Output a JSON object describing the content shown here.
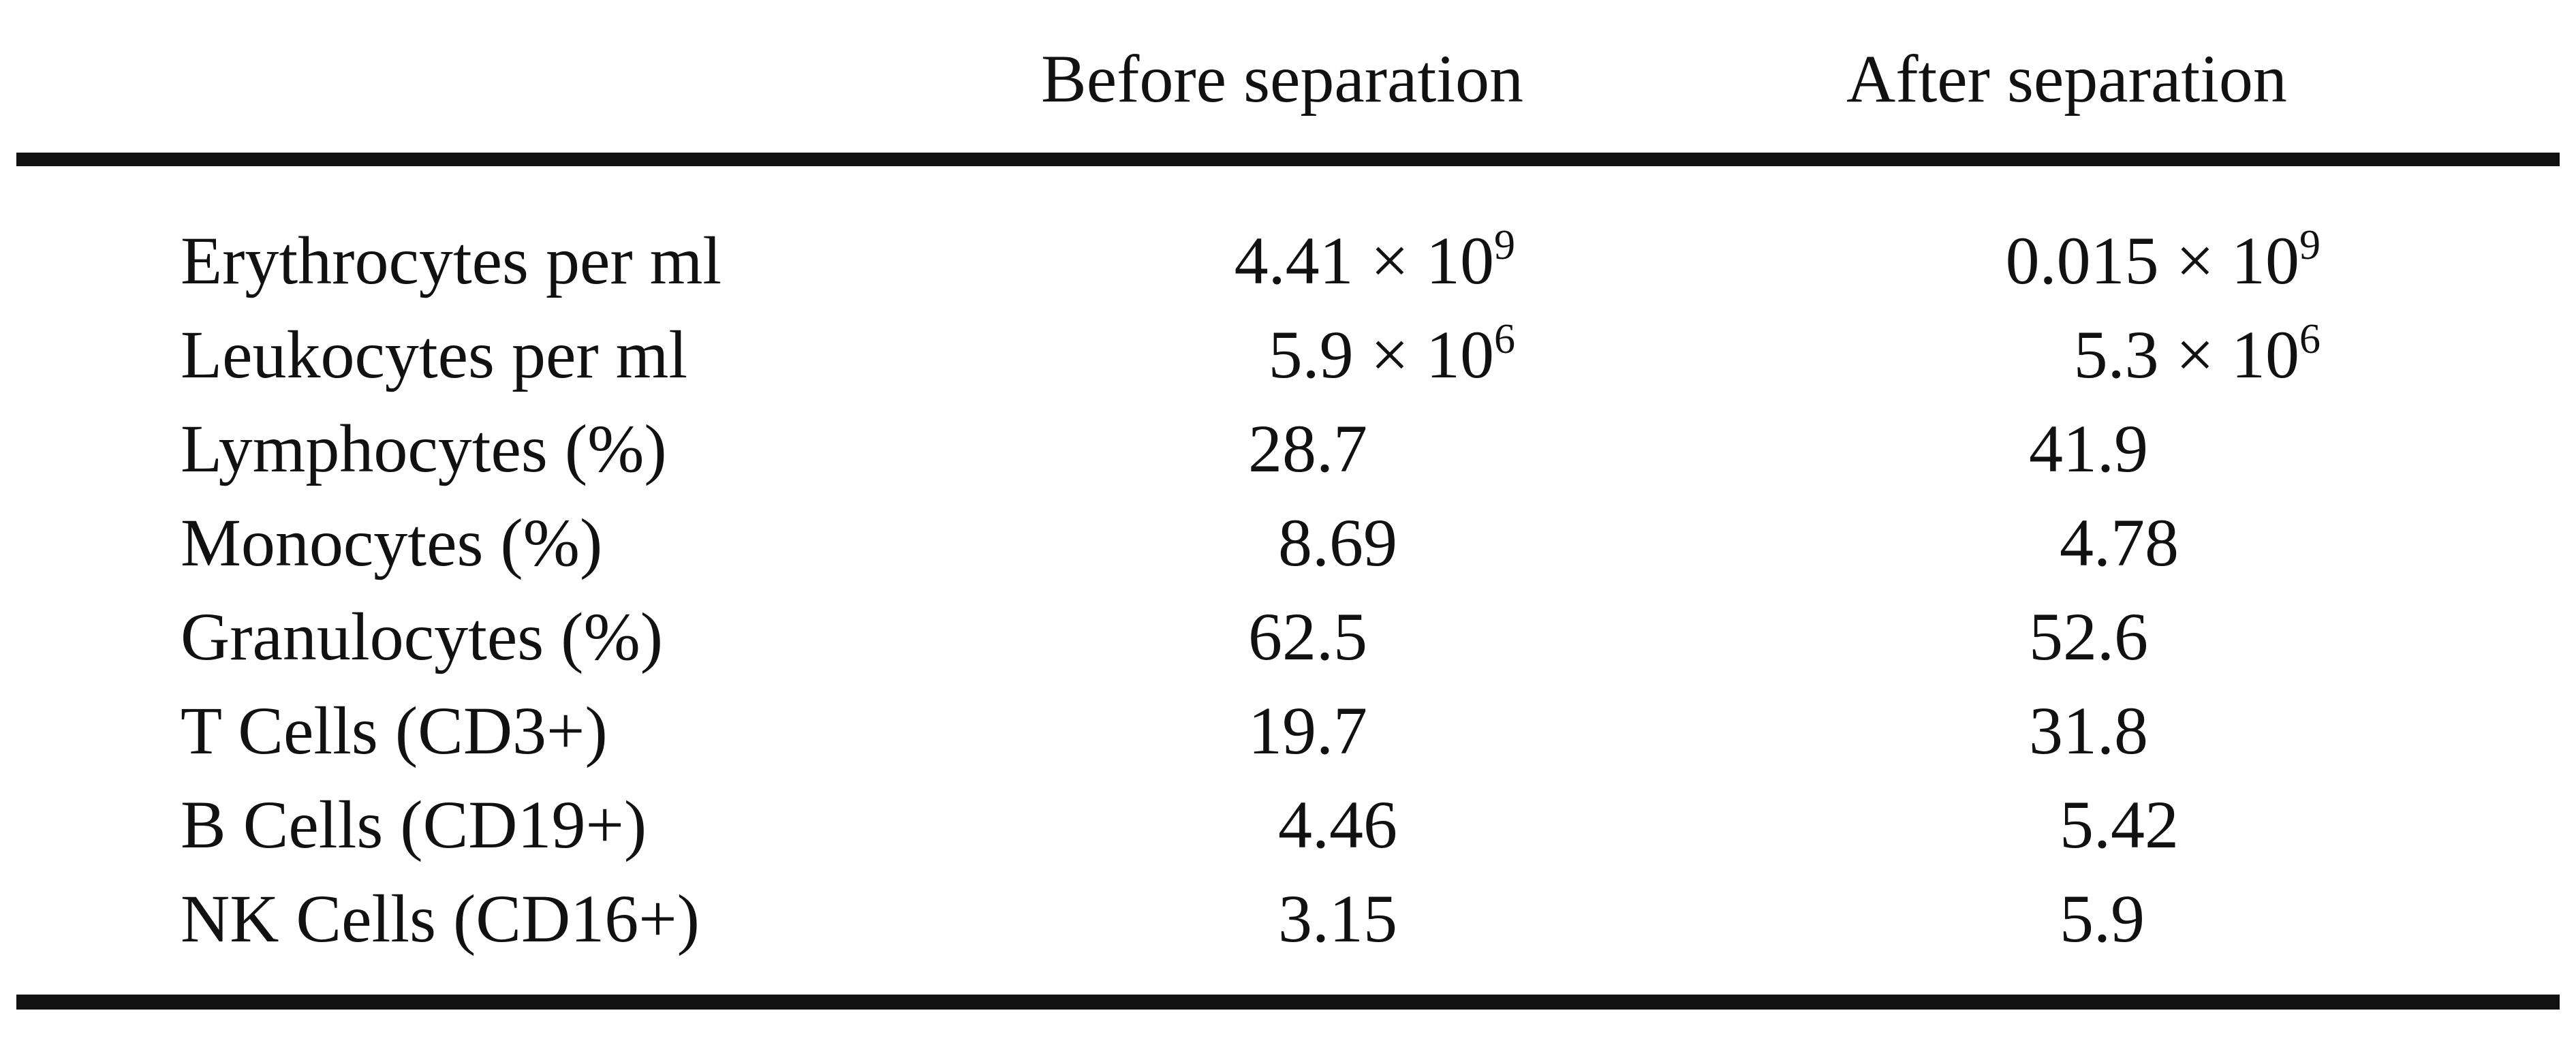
{
  "table": {
    "headers": {
      "col0": "",
      "before": "Before separation",
      "after": "After separation"
    },
    "rows": [
      {
        "label": "Erythrocytes per ml",
        "before_base": "4.41 × 10",
        "before_exp": "9",
        "after_base": "0.015 × 10",
        "after_exp": "9"
      },
      {
        "label": "Leukocytes per ml",
        "before_base": "5.9 × 10",
        "before_exp": "6",
        "after_base": "5.3 × 10",
        "after_exp": "6"
      },
      {
        "label": "Lymphocytes (%)",
        "before_base": "28.7",
        "before_exp": "",
        "after_base": "41.9",
        "after_exp": ""
      },
      {
        "label": "Monocytes (%)",
        "before_base": "8.69",
        "before_exp": "",
        "after_base": "4.78",
        "after_exp": ""
      },
      {
        "label": "Granulocytes (%)",
        "before_base": "62.5",
        "before_exp": "",
        "after_base": "52.6",
        "after_exp": ""
      },
      {
        "label": "T Cells (CD3+)",
        "before_base": "19.7",
        "before_exp": "",
        "after_base": "31.8",
        "after_exp": ""
      },
      {
        "label": "B Cells (CD19+)",
        "before_base": "4.46",
        "before_exp": "",
        "after_base": "5.42",
        "after_exp": ""
      },
      {
        "label": "NK Cells (CD16+)",
        "before_base": "3.15",
        "before_exp": "",
        "after_base": "5.9",
        "after_exp": ""
      }
    ]
  }
}
